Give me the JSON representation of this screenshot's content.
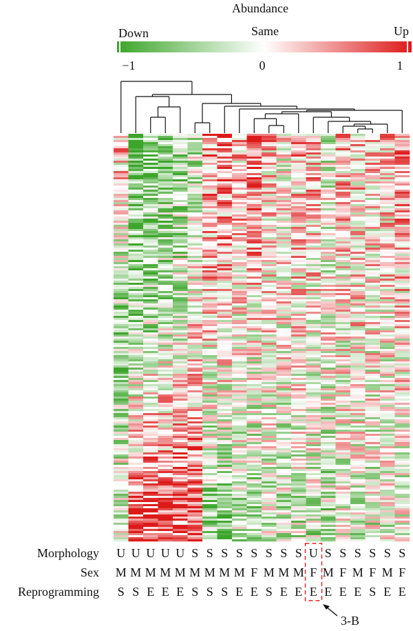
{
  "colors": {
    "down": "#3ca52a",
    "same": "#ffffff",
    "up": "#dd1a1a",
    "highlight": "#e02020",
    "text": "#111111"
  },
  "legend": {
    "title": "Abundance",
    "low_label": "Down",
    "mid_label": "Same",
    "high_label": "Up",
    "ticks": [
      "−1",
      "0",
      "1"
    ]
  },
  "chart_data": {
    "type": "heatmap",
    "value_range": [
      -1,
      1
    ],
    "num_columns": 20,
    "dendrogram": "hierarchical clustering of columns (top)",
    "annotation_rows": [
      {
        "name": "Morphology",
        "values": [
          "U",
          "U",
          "U",
          "U",
          "U",
          "S",
          "S",
          "S",
          "S",
          "S",
          "S",
          "S",
          "S",
          "U",
          "S",
          "S",
          "S",
          "S",
          "S",
          "S"
        ]
      },
      {
        "name": "Sex",
        "values": [
          "M",
          "M",
          "M",
          "M",
          "M",
          "M",
          "M",
          "M",
          "M",
          "F",
          "M",
          "M",
          "M",
          "F",
          "M",
          "F",
          "M",
          "F",
          "M",
          "F"
        ]
      },
      {
        "name": "Reprogramming",
        "values": [
          "S",
          "S",
          "E",
          "E",
          "E",
          "S",
          "S",
          "S",
          "E",
          "E",
          "S",
          "E",
          "E",
          "E",
          "E",
          "E",
          "E",
          "S",
          "E",
          "E"
        ]
      }
    ],
    "highlight": {
      "column": 14,
      "label": "3-B"
    },
    "column_profiles": [
      {
        "top": 0.3,
        "mid": -0.5,
        "bot": 0.0
      },
      {
        "top": -0.85,
        "mid": -0.4,
        "bot": 0.9
      },
      {
        "top": -0.6,
        "mid": -0.3,
        "bot": 0.85
      },
      {
        "top": -0.6,
        "mid": -0.2,
        "bot": 0.85
      },
      {
        "top": -0.5,
        "mid": -0.2,
        "bot": 0.9
      },
      {
        "top": -0.3,
        "mid": 0.1,
        "bot": 0.8
      },
      {
        "top": 0.5,
        "mid": 0.1,
        "bot": -0.5
      },
      {
        "top": 0.6,
        "mid": 0.1,
        "bot": -0.6
      },
      {
        "top": 0.3,
        "mid": 0.0,
        "bot": -0.3
      },
      {
        "top": 0.7,
        "mid": 0.0,
        "bot": -0.4
      },
      {
        "top": 0.3,
        "mid": 0.0,
        "bot": -0.3
      },
      {
        "top": 0.0,
        "mid": 0.0,
        "bot": -0.3
      },
      {
        "top": 0.3,
        "mid": 0.1,
        "bot": -0.3
      },
      {
        "top": 0.3,
        "mid": 0.0,
        "bot": -0.3
      },
      {
        "top": -0.2,
        "mid": 0.0,
        "bot": -0.4
      },
      {
        "top": 0.3,
        "mid": 0.0,
        "bot": -0.2
      },
      {
        "top": 0.2,
        "mid": 0.1,
        "bot": -0.2
      },
      {
        "top": 0.2,
        "mid": 0.0,
        "bot": -0.2
      },
      {
        "top": 0.3,
        "mid": 0.0,
        "bot": -0.2
      },
      {
        "top": 0.4,
        "mid": 0.1,
        "bot": -0.2
      }
    ]
  }
}
